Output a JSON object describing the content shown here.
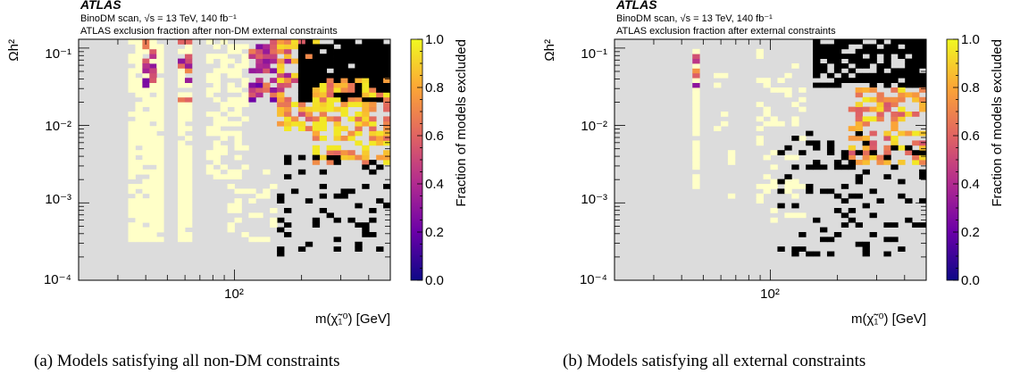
{
  "chart_data": [
    {
      "type": "heatmap",
      "atlas_label": "ATLAS",
      "header_line1": "BinoDM scan, √s = 13 TeV, 140 fb⁻¹",
      "header_line2": "ATLAS exclusion fraction after non-DM external constraints",
      "xlabel": "m(χ̃₁⁰) [GeV]",
      "ylabel": "Ωh²",
      "xscale": "log",
      "yscale": "log",
      "xlim": [
        20,
        500
      ],
      "ylim": [
        0.0001,
        0.13
      ],
      "x_tick_labels": [
        "10²"
      ],
      "y_tick_labels": [
        "10⁻⁴",
        "10⁻³",
        "10⁻²",
        "10⁻¹"
      ],
      "colorbar": {
        "label": "Fraction of models excluded",
        "range": [
          0.0,
          1.0
        ],
        "tick_labels": [
          "0.0",
          "0.2",
          "0.4",
          "0.6",
          "0.8",
          "1.0"
        ]
      },
      "background_color": "#dcdcdc",
      "cells": [
        {
          "xr": [
            34,
            48
          ],
          "yr": [
            0.0003,
            0.13
          ],
          "fraction": 0.02,
          "density": 0.85
        },
        {
          "xr": [
            55,
            66
          ],
          "yr": [
            0.0003,
            0.13
          ],
          "fraction": 0.02,
          "density": 0.85
        },
        {
          "xr": [
            40,
            46
          ],
          "yr": [
            0.03,
            0.13
          ],
          "fraction": 0.45,
          "density": 0.4
        },
        {
          "xr": [
            57,
            63
          ],
          "yr": [
            0.02,
            0.13
          ],
          "fraction": 0.5,
          "density": 0.5
        },
        {
          "xr": [
            75,
            120
          ],
          "yr": [
            0.002,
            0.13
          ],
          "fraction": 0.02,
          "density": 0.55
        },
        {
          "xr": [
            120,
            180
          ],
          "yr": [
            0.02,
            0.13
          ],
          "fraction": 0.45,
          "density": 0.6
        },
        {
          "xr": [
            150,
            260
          ],
          "yr": [
            0.008,
            0.13
          ],
          "fraction": 0.75,
          "density": 0.55
        },
        {
          "xr": [
            200,
            500
          ],
          "yr": [
            0.02,
            0.13
          ],
          "fraction": 1.0,
          "density": 0.9
        },
        {
          "xr": [
            220,
            500
          ],
          "yr": [
            0.003,
            0.04
          ],
          "fraction": 0.85,
          "density": 0.6
        },
        {
          "xr": [
            150,
            500
          ],
          "yr": [
            0.0002,
            0.004
          ],
          "fraction": 1.0,
          "density": 0.15
        },
        {
          "xr": [
            90,
            150
          ],
          "yr": [
            0.0003,
            0.003
          ],
          "fraction": 0.02,
          "density": 0.25
        }
      ]
    },
    {
      "type": "heatmap",
      "atlas_label": "ATLAS",
      "header_line1": "BinoDM scan, √s = 13 TeV, 140 fb⁻¹",
      "header_line2": "ATLAS exclusion fraction after external constraints",
      "xlabel": "m(χ̃₁⁰) [GeV]",
      "ylabel": "Ωh²",
      "xscale": "log",
      "yscale": "log",
      "xlim": [
        20,
        500
      ],
      "ylim": [
        0.0001,
        0.13
      ],
      "x_tick_labels": [
        "10²"
      ],
      "y_tick_labels": [
        "10⁻⁴",
        "10⁻³",
        "10⁻²",
        "10⁻¹"
      ],
      "colorbar": {
        "label": "Fraction of models excluded",
        "range": [
          0.0,
          1.0
        ],
        "tick_labels": [
          "0.0",
          "0.2",
          "0.4",
          "0.6",
          "0.8",
          "1.0"
        ]
      },
      "background_color": "#dcdcdc",
      "cells": [
        {
          "xr": [
            44,
            47
          ],
          "yr": [
            0.0015,
            0.1
          ],
          "fraction": 0.02,
          "density": 0.9
        },
        {
          "xr": [
            44,
            47
          ],
          "yr": [
            0.03,
            0.1
          ],
          "fraction": 0.55,
          "density": 0.45
        },
        {
          "xr": [
            55,
            70
          ],
          "yr": [
            0.001,
            0.1
          ],
          "fraction": 0.02,
          "density": 0.12
        },
        {
          "xr": [
            85,
            140
          ],
          "yr": [
            0.0006,
            0.1
          ],
          "fraction": 0.02,
          "density": 0.22
        },
        {
          "xr": [
            150,
            500
          ],
          "yr": [
            0.03,
            0.13
          ],
          "fraction": 1.0,
          "density": 0.75
        },
        {
          "xr": [
            220,
            500
          ],
          "yr": [
            0.003,
            0.03
          ],
          "fraction": 0.8,
          "density": 0.5
        },
        {
          "xr": [
            110,
            500
          ],
          "yr": [
            0.0002,
            0.01
          ],
          "fraction": 1.0,
          "density": 0.18
        }
      ]
    }
  ],
  "captions": {
    "a": "(a) Models satisfying all non-DM constraints",
    "b": "(b) Models satisfying all external constraints"
  }
}
